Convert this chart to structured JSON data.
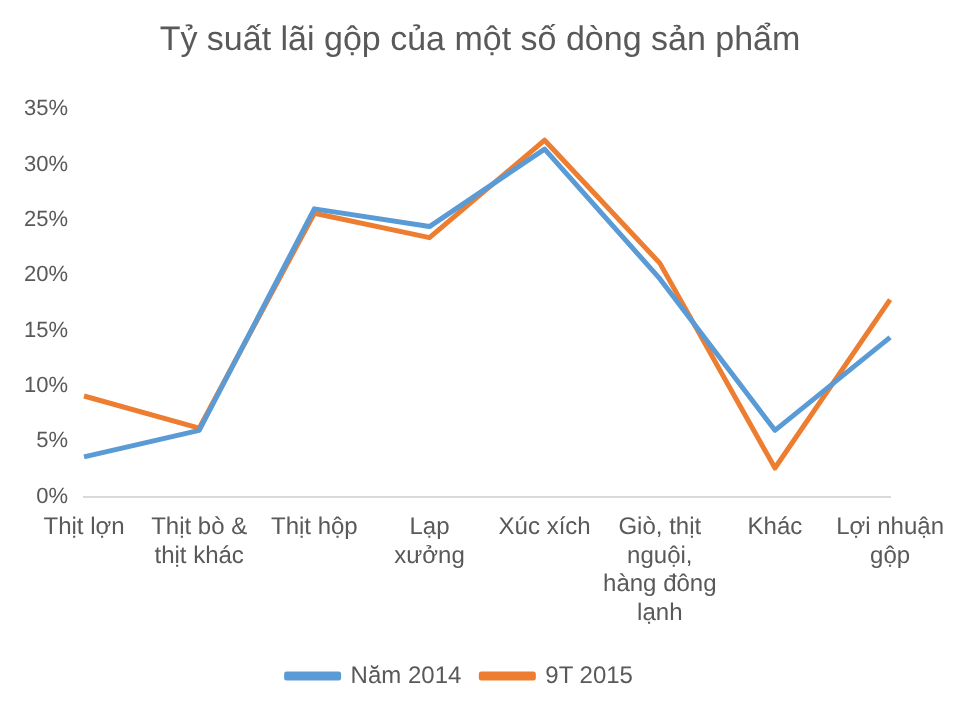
{
  "chart_data": {
    "type": "line",
    "title": "Tỷ suất lãi gộp của một số dòng sản phẩm",
    "categories": [
      "Thịt lợn",
      "Thịt bò & thịt khác",
      "Thịt hộp",
      "Lạp xưởng",
      "Xúc xích",
      "Giò, thịt nguội, hàng đông lạnh",
      "Khác",
      "Lợi nhuận gộp"
    ],
    "series": [
      {
        "name": "Năm 2014",
        "color": "#5b9bd5",
        "values": [
          3.6,
          6.0,
          26.0,
          24.4,
          31.4,
          19.7,
          6.0,
          14.4
        ]
      },
      {
        "name": "9T 2015",
        "color": "#ed7d31",
        "values": [
          9.1,
          6.2,
          25.6,
          23.4,
          32.2,
          21.1,
          2.6,
          17.8
        ]
      }
    ],
    "ylim": [
      0,
      35
    ],
    "yticks": [
      {
        "value": 0,
        "label": "0%"
      },
      {
        "value": 5,
        "label": "5%"
      },
      {
        "value": 10,
        "label": "10%"
      },
      {
        "value": 15,
        "label": "15%"
      },
      {
        "value": 20,
        "label": "20%"
      },
      {
        "value": 25,
        "label": "25%"
      },
      {
        "value": 30,
        "label": "30%"
      },
      {
        "value": 35,
        "label": "35%"
      }
    ],
    "legend": "bottom",
    "marker": "none",
    "line_style": "solid"
  }
}
